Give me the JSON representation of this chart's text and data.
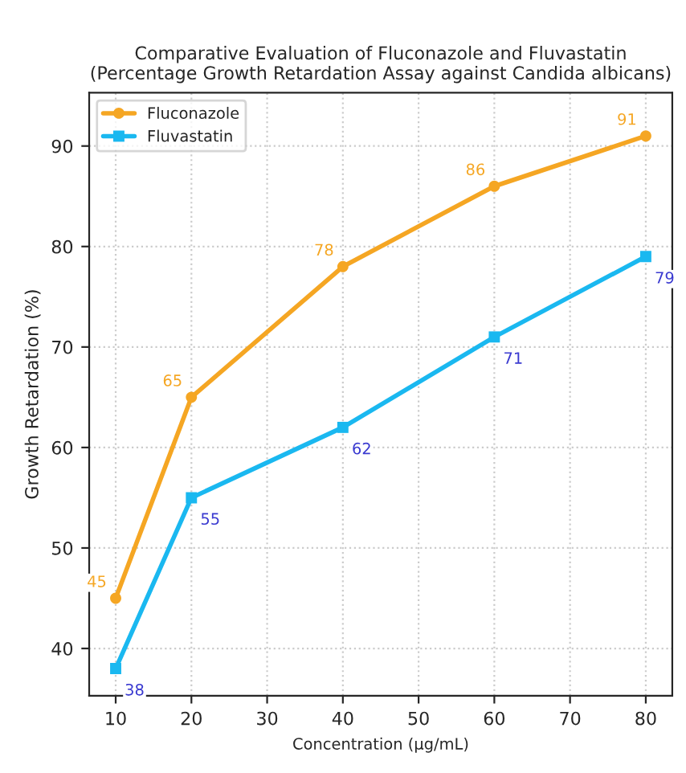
{
  "chart_data": {
    "type": "line",
    "title": "Comparative Evaluation of Fluconazole and Fluvastatin\n(Percentage Growth Retardation Assay against Candida albicans)",
    "xlabel": "Concentration (µg/mL)",
    "ylabel": "Growth Retardation (%)",
    "x": [
      10,
      20,
      40,
      60,
      80
    ],
    "series": [
      {
        "name": "Fluconazole",
        "color": "#f5a623",
        "marker": "circle",
        "values": [
          45,
          65,
          78,
          86,
          91
        ]
      },
      {
        "name": "Fluvastatin",
        "color": "#1ab8f0",
        "marker": "square",
        "values": [
          38,
          55,
          62,
          71,
          79
        ]
      }
    ],
    "xlim": [
      6.5,
      83.5
    ],
    "xticks": [
      10,
      20,
      30,
      40,
      50,
      60,
      70,
      80
    ],
    "ylim": [
      35.3,
      95.3
    ],
    "yticks": [
      40,
      50,
      60,
      70,
      80,
      90
    ],
    "data_labels": true,
    "grid": true,
    "legend": "top left"
  }
}
